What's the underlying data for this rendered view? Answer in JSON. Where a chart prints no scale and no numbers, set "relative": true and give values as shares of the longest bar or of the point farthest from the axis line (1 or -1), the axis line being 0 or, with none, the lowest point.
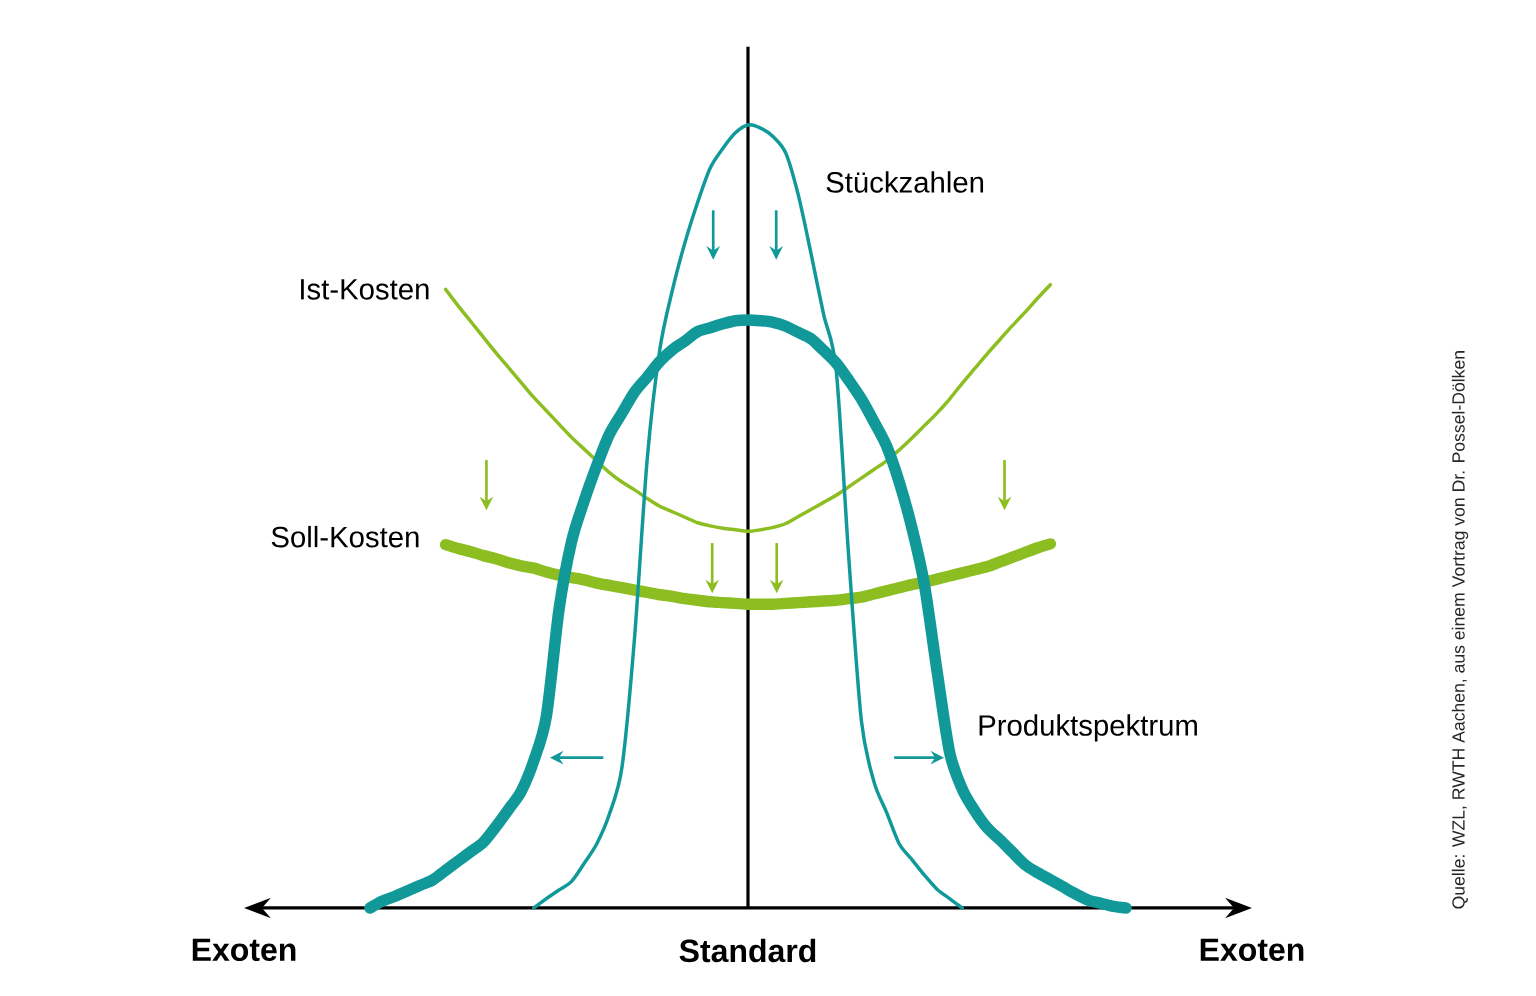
{
  "chart_data": {
    "type": "line",
    "relative": true,
    "categories": [
      "Exoten",
      null,
      null,
      null,
      null,
      null,
      null,
      null,
      null,
      null,
      null,
      null,
      null,
      null,
      null,
      null,
      null,
      null,
      null,
      null,
      null,
      null,
      null,
      null,
      null,
      null,
      null,
      null,
      null,
      null,
      null,
      null,
      null,
      null,
      null,
      null,
      null,
      null,
      null,
      null,
      "Standard",
      null,
      null,
      null,
      null,
      null,
      null,
      null,
      null,
      null,
      null,
      null,
      null,
      null,
      null,
      null,
      null,
      null,
      null,
      null,
      null,
      null,
      null,
      null,
      null,
      null,
      null,
      null,
      null,
      null,
      null,
      null,
      null,
      null,
      null,
      null,
      null,
      null,
      null,
      null,
      "Exoten"
    ],
    "annotations": [
      "Quelle: WZL, RWTH Aachen, aus einem Vortrag von Dr. Possel-Dölken"
    ],
    "series": [
      {
        "name": "Ist-Kosten",
        "color": "#8cbe22",
        "values": [
          null,
          null,
          null,
          null,
          null,
          null,
          null,
          null,
          null,
          null,
          null,
          null,
          null,
          null,
          null,
          null,
          0.79,
          0.769,
          0.749,
          0.729,
          0.709,
          0.69,
          0.671,
          0.652,
          0.635,
          0.618,
          0.601,
          0.586,
          0.571,
          0.556,
          0.544,
          0.534,
          0.523,
          0.513,
          0.506,
          0.499,
          0.492,
          0.488,
          0.485,
          0.483,
          0.481,
          0.483,
          0.486,
          0.491,
          0.5,
          0.509,
          0.518,
          0.527,
          0.538,
          0.549,
          0.56,
          0.571,
          0.585,
          0.6,
          0.616,
          0.632,
          0.65,
          0.67,
          0.689,
          0.708,
          0.726,
          0.744,
          0.761,
          0.779,
          0.796,
          null,
          null,
          null,
          null,
          null,
          null,
          null,
          null,
          null,
          null,
          null,
          null,
          null,
          null,
          null,
          null
        ]
      },
      {
        "name": "Soll-Kosten",
        "color": "#8cbe22",
        "values": [
          null,
          null,
          null,
          null,
          null,
          null,
          null,
          null,
          null,
          null,
          null,
          null,
          null,
          null,
          null,
          null,
          0.464,
          0.459,
          0.455,
          0.45,
          0.446,
          0.441,
          0.437,
          0.434,
          0.429,
          0.425,
          0.422,
          0.419,
          0.415,
          0.412,
          0.409,
          0.406,
          0.403,
          0.4,
          0.398,
          0.395,
          0.393,
          0.391,
          0.39,
          0.389,
          0.388,
          0.388,
          0.388,
          0.389,
          0.39,
          0.391,
          0.392,
          0.393,
          0.395,
          0.397,
          0.401,
          0.405,
          0.409,
          0.413,
          0.416,
          0.42,
          0.424,
          0.428,
          0.432,
          0.436,
          0.442,
          0.448,
          0.454,
          0.46,
          0.465,
          null,
          null,
          null,
          null,
          null,
          null,
          null,
          null,
          null,
          null,
          null,
          null,
          null,
          null,
          null,
          null
        ]
      },
      {
        "name": "Stückzahlen",
        "color": "#11999a",
        "values": [
          null,
          null,
          null,
          null,
          null,
          null,
          null,
          null,
          null,
          null,
          null,
          null,
          null,
          null,
          null,
          null,
          null,
          null,
          null,
          null,
          null,
          null,
          null,
          0,
          0.012,
          0.023,
          0.034,
          0.057,
          0.082,
          0.12,
          0.18,
          0.346,
          0.573,
          0.713,
          0.789,
          0.85,
          0.901,
          0.945,
          0.97,
          0.99,
          1,
          0.996,
          0.985,
          0.964,
          0.91,
          0.836,
          0.758,
          0.687,
          0.447,
          0.239,
          0.161,
          0.122,
          0.082,
          0.062,
          0.042,
          0.024,
          0.012,
          0,
          null,
          null,
          null,
          null,
          null,
          null,
          null,
          null,
          null,
          null,
          null,
          null,
          null,
          null,
          null,
          null,
          null,
          null,
          null,
          null,
          null,
          null,
          null
        ]
      },
      {
        "name": "Produktspektrum",
        "color": "#11999a",
        "values": [
          null,
          null,
          null,
          null,
          null,
          null,
          null,
          null,
          null,
          null,
          0,
          0.009,
          0.015,
          0.022,
          0.029,
          0.036,
          0.048,
          0.06,
          0.072,
          0.084,
          0.104,
          0.126,
          0.149,
          0.188,
          0.245,
          0.381,
          0.468,
          0.52,
          0.565,
          0.605,
          0.632,
          0.659,
          0.678,
          0.698,
          0.713,
          0.724,
          0.736,
          0.741,
          0.746,
          0.75,
          0.751,
          0.75,
          0.748,
          0.743,
          0.735,
          0.727,
          0.712,
          0.696,
          0.674,
          0.65,
          0.621,
          0.59,
          0.544,
          0.486,
          0.413,
          0.303,
          0.199,
          0.152,
          0.124,
          0.102,
          0.087,
          0.071,
          0.055,
          0.045,
          0.036,
          0.027,
          0.018,
          0.01,
          0.006,
          0.002,
          0,
          null,
          null,
          null,
          null,
          null,
          null,
          null,
          null,
          null,
          null
        ]
      }
    ]
  }
}
